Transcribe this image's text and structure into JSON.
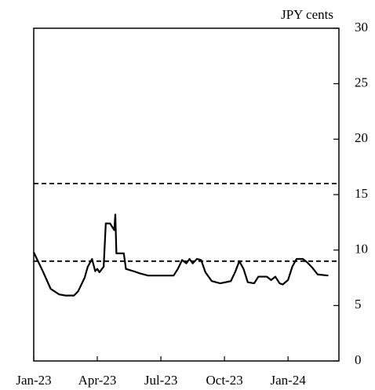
{
  "chart_data": {
    "type": "line",
    "y_label": "JPY cents",
    "x": [
      0,
      0.2,
      0.45,
      0.8,
      1.2,
      1.5,
      1.9,
      2.1,
      2.4,
      2.55,
      2.75,
      2.9,
      3.0,
      3.1,
      3.3,
      3.4,
      3.6,
      3.8,
      3.85,
      3.9,
      4.25,
      4.35,
      4.7,
      5.0,
      5.4,
      6.6,
      6.8,
      7.0,
      7.2,
      7.35,
      7.5,
      7.7,
      7.9,
      8.1,
      8.4,
      8.8,
      9.3,
      9.5,
      9.7,
      9.9,
      10.1,
      10.4,
      10.6,
      11.0,
      11.2,
      11.4,
      11.6,
      11.75,
      12.0,
      12.2,
      12.4,
      12.7,
      12.9,
      13.15,
      13.4,
      13.9
    ],
    "series": [
      {
        "color": "#000000",
        "values": [
          9.8,
          9.0,
          8.0,
          6.5,
          6.0,
          5.9,
          5.9,
          6.3,
          7.5,
          8.5,
          9.2,
          8.1,
          8.3,
          8.0,
          8.5,
          12.4,
          12.4,
          11.8,
          13.2,
          9.7,
          9.7,
          8.3,
          8.1,
          7.9,
          7.7,
          7.7,
          8.3,
          9.1,
          8.8,
          9.2,
          8.8,
          9.2,
          9.1,
          8.0,
          7.2,
          7.0,
          7.2,
          8.0,
          9.0,
          8.3,
          7.1,
          7.0,
          7.6,
          7.6,
          7.3,
          7.6,
          7.0,
          6.9,
          7.3,
          8.5,
          9.2,
          9.2,
          8.9,
          8.4,
          7.8,
          7.7
        ]
      }
    ],
    "hlines": [
      16,
      9
    ],
    "xlim": [
      0,
      14.4
    ],
    "xticks": [
      {
        "value": 0,
        "label": "Jan-23"
      },
      {
        "value": 3,
        "label": "Apr-23"
      },
      {
        "value": 6,
        "label": "Jul-23"
      },
      {
        "value": 9,
        "label": "Oct-23"
      },
      {
        "value": 12,
        "label": "Jan-24"
      }
    ],
    "ylim": [
      0,
      30
    ],
    "yticks": [
      0,
      5,
      10,
      15,
      20,
      25,
      30
    ],
    "y_axis_side": "right"
  }
}
